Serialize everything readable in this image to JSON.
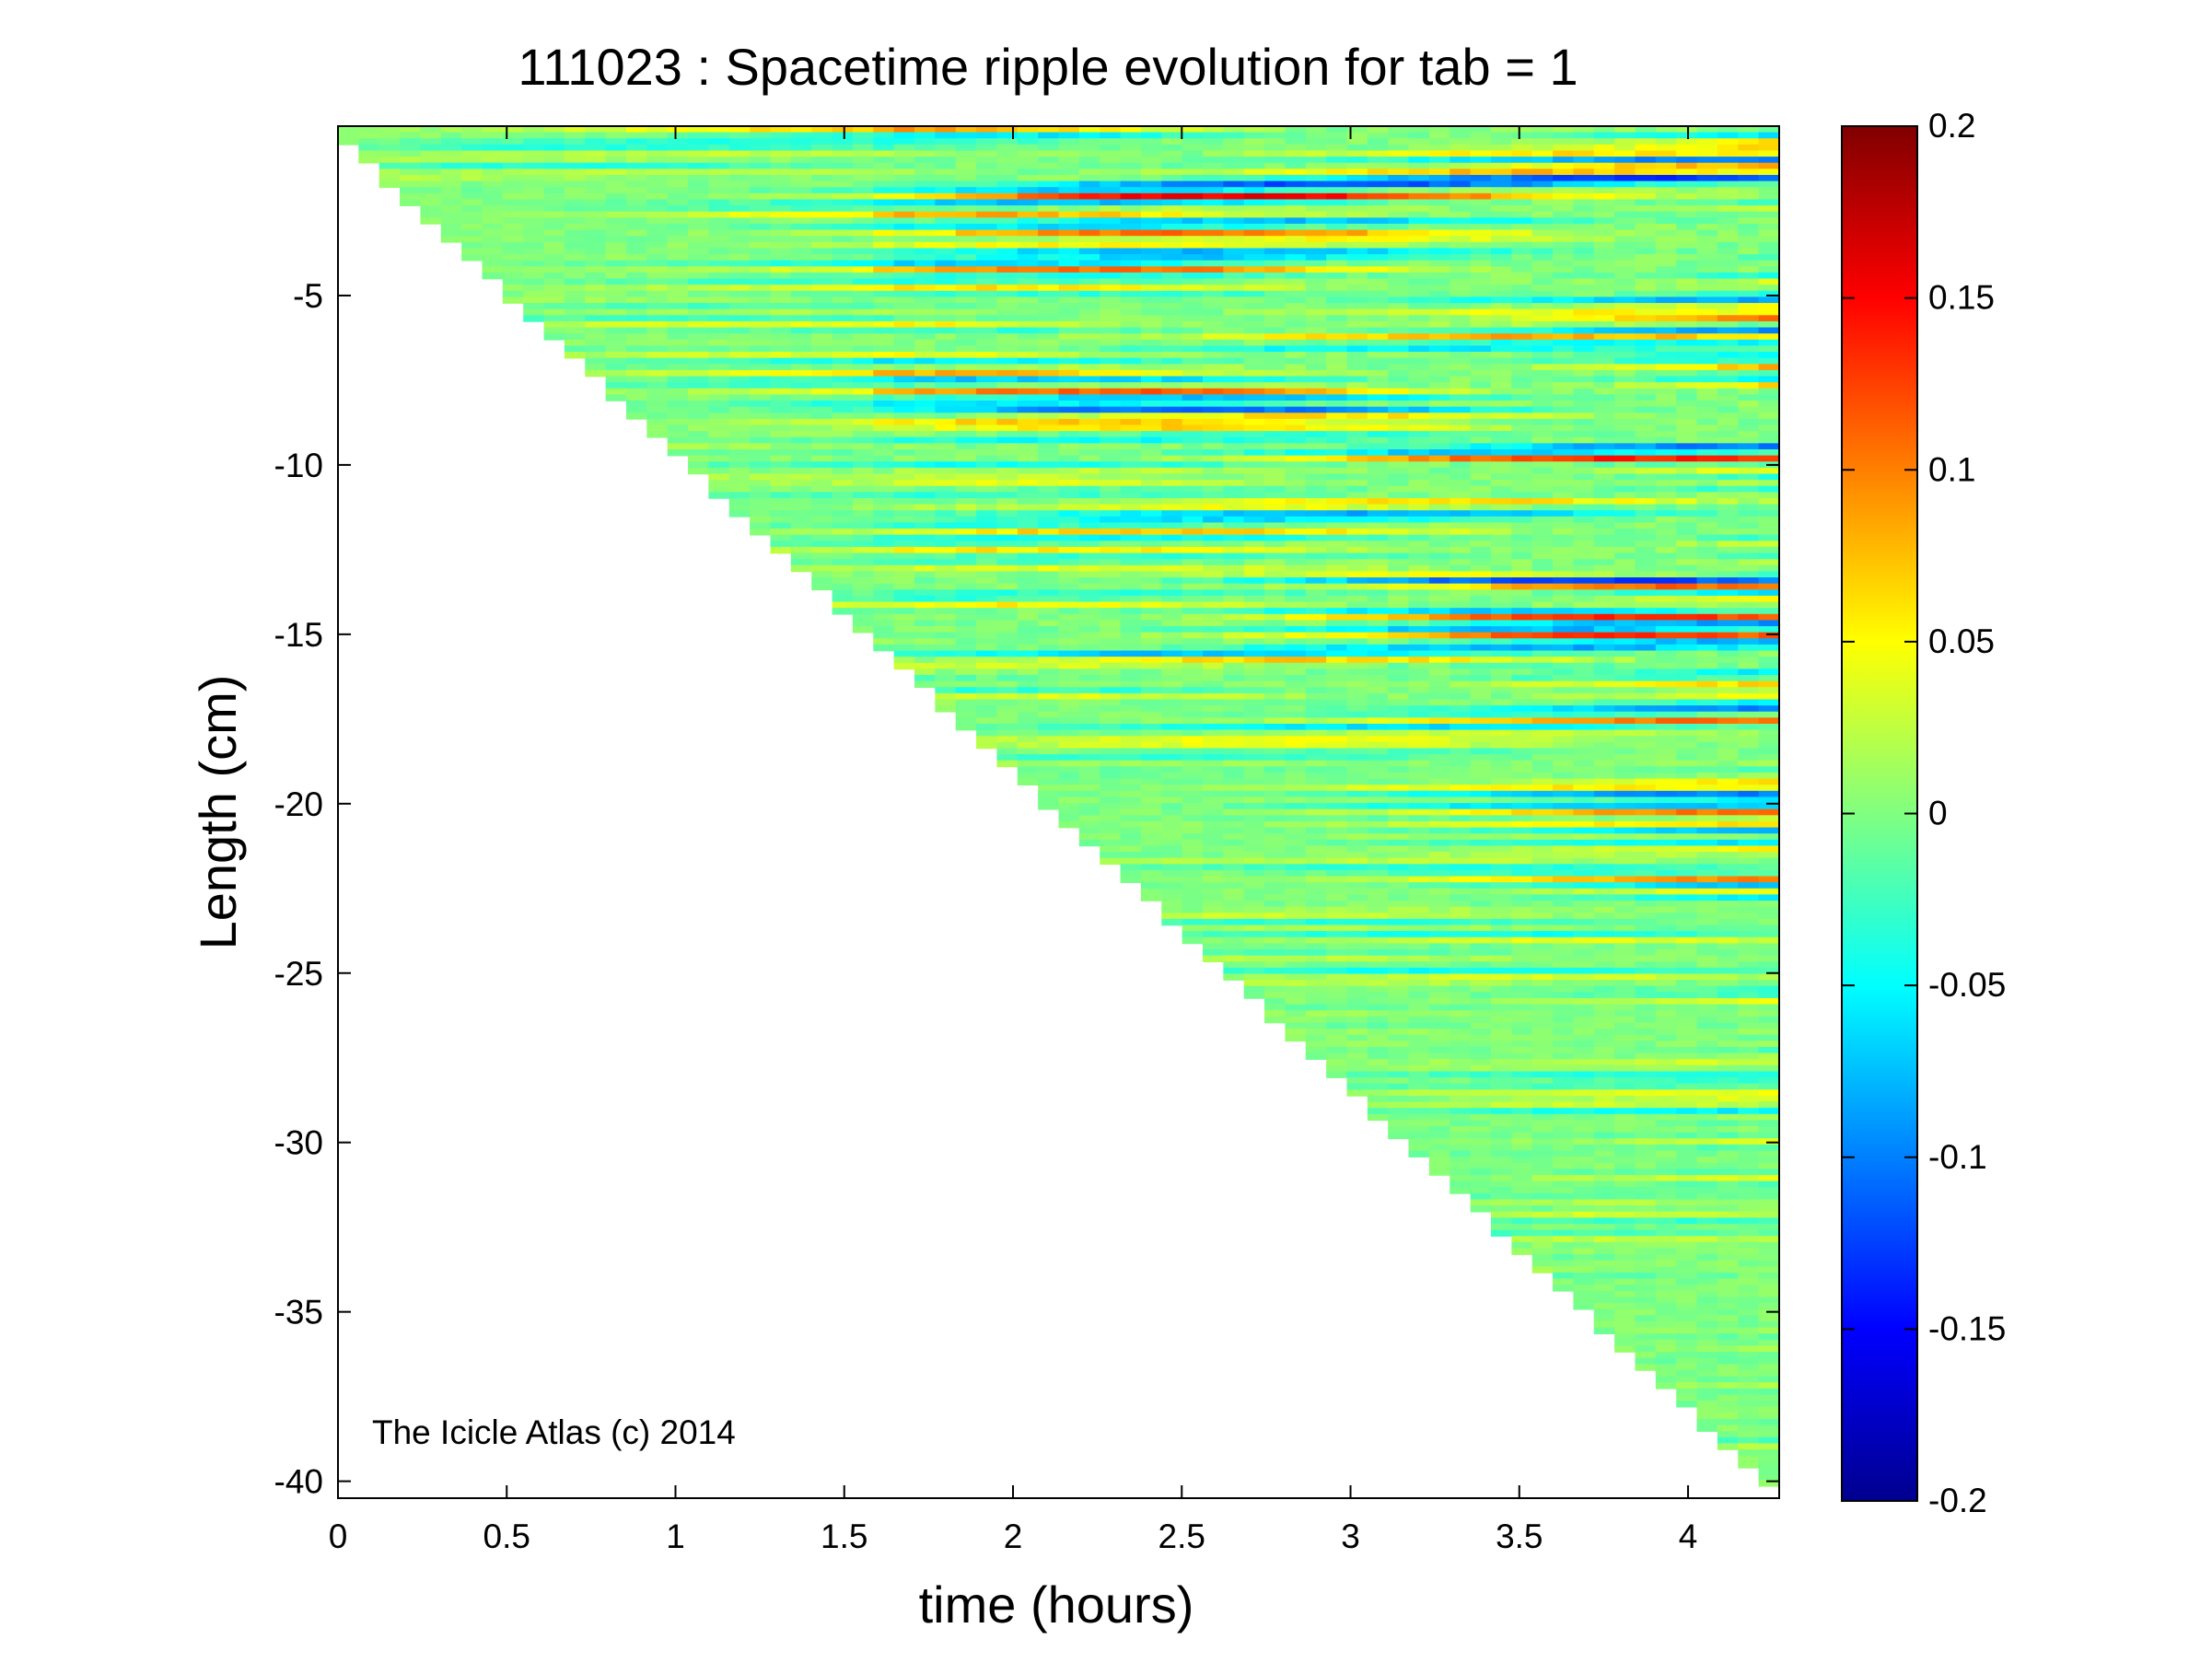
{
  "chart_data": {
    "type": "heatmap",
    "title": "111023 : Spacetime ripple evolution for tab = 1",
    "xlabel": "time (hours)",
    "ylabel": "Length (cm)",
    "xlim": [
      0,
      4.27
    ],
    "ylim": [
      -40.5,
      0
    ],
    "x_ticks": [
      0,
      0.5,
      1,
      1.5,
      2,
      2.5,
      3,
      3.5,
      4
    ],
    "y_ticks": [
      -5,
      -10,
      -15,
      -20,
      -25,
      -30,
      -35,
      -40
    ],
    "colorbar": {
      "colormap": "jet",
      "range": [
        -0.2,
        0.2
      ],
      "ticks": [
        0.2,
        0.15,
        0.1,
        0.05,
        0,
        -0.05,
        -0.1,
        -0.15,
        -0.2
      ]
    },
    "icicle_front": {
      "description_free": true,
      "time_hours": [
        0,
        4.2
      ],
      "length_cm": [
        0,
        -39.5
      ]
    },
    "annotation": "The Icicle Atlas (c) 2014"
  }
}
